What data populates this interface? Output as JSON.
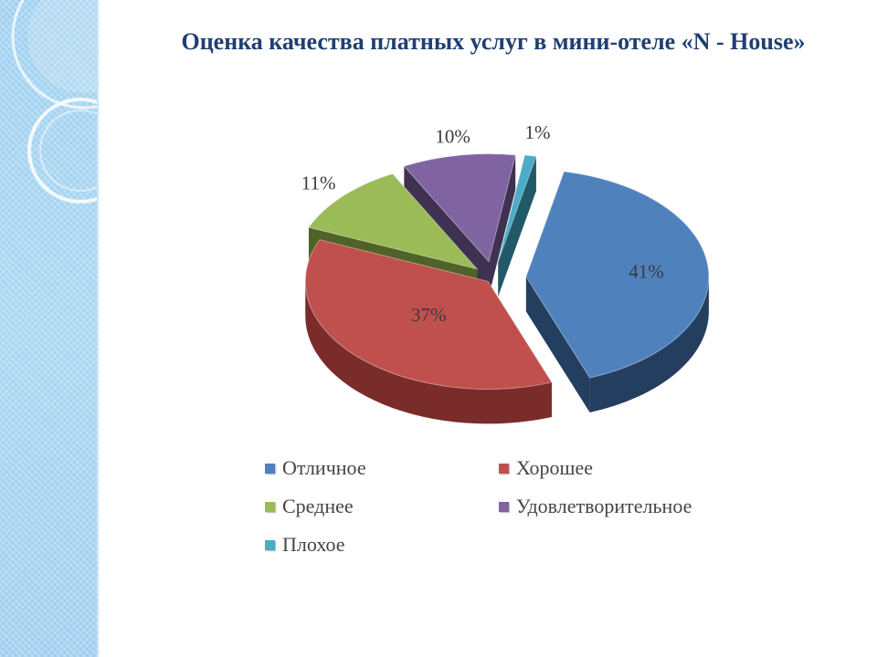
{
  "slide": {
    "title": "Оценка качества платных услуг в мини-отеле «N - House»"
  },
  "chart_data": {
    "type": "pie",
    "style": "3d-exploded",
    "slices": [
      {
        "label": "Отличное",
        "value": 41,
        "display": "41%",
        "color": "#4f81bd",
        "side_color": "#243e60"
      },
      {
        "label": "Хорошее",
        "value": 37,
        "display": "37%",
        "color": "#c0504d",
        "side_color": "#7a2c2a"
      },
      {
        "label": "Среднее",
        "value": 11,
        "display": "11%",
        "color": "#9bbb59",
        "side_color": "#4f6228"
      },
      {
        "label": "Удовлетворительное",
        "value": 10,
        "display": "10%",
        "color": "#8064a2",
        "side_color": "#3f3151"
      },
      {
        "label": "Плохое",
        "value": 1,
        "display": "1%",
        "color": "#4bacc6",
        "side_color": "#215968"
      }
    ],
    "legend_position": "bottom"
  }
}
